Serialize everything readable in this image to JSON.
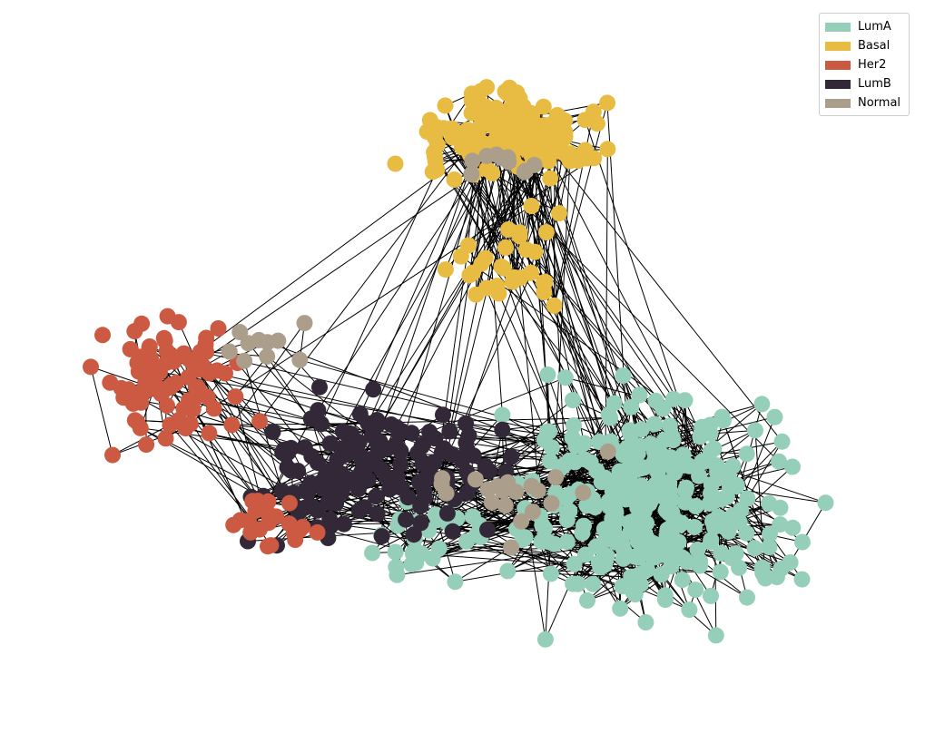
{
  "chart_data": {
    "type": "network",
    "node_classes": [
      "LumA",
      "Basal",
      "Her2",
      "LumB",
      "Normal"
    ],
    "edge_color": "#000000",
    "legend_position": "top-right",
    "axes_visible": false
  },
  "legend": {
    "items": [
      {
        "label": "LumA",
        "color": "#96cfb9"
      },
      {
        "label": "Basal",
        "color": "#e8bc43"
      },
      {
        "label": "Her2",
        "color": "#cc5a42"
      },
      {
        "label": "LumB",
        "color": "#322838"
      },
      {
        "label": "Normal",
        "color": "#ab9f8c"
      }
    ]
  }
}
